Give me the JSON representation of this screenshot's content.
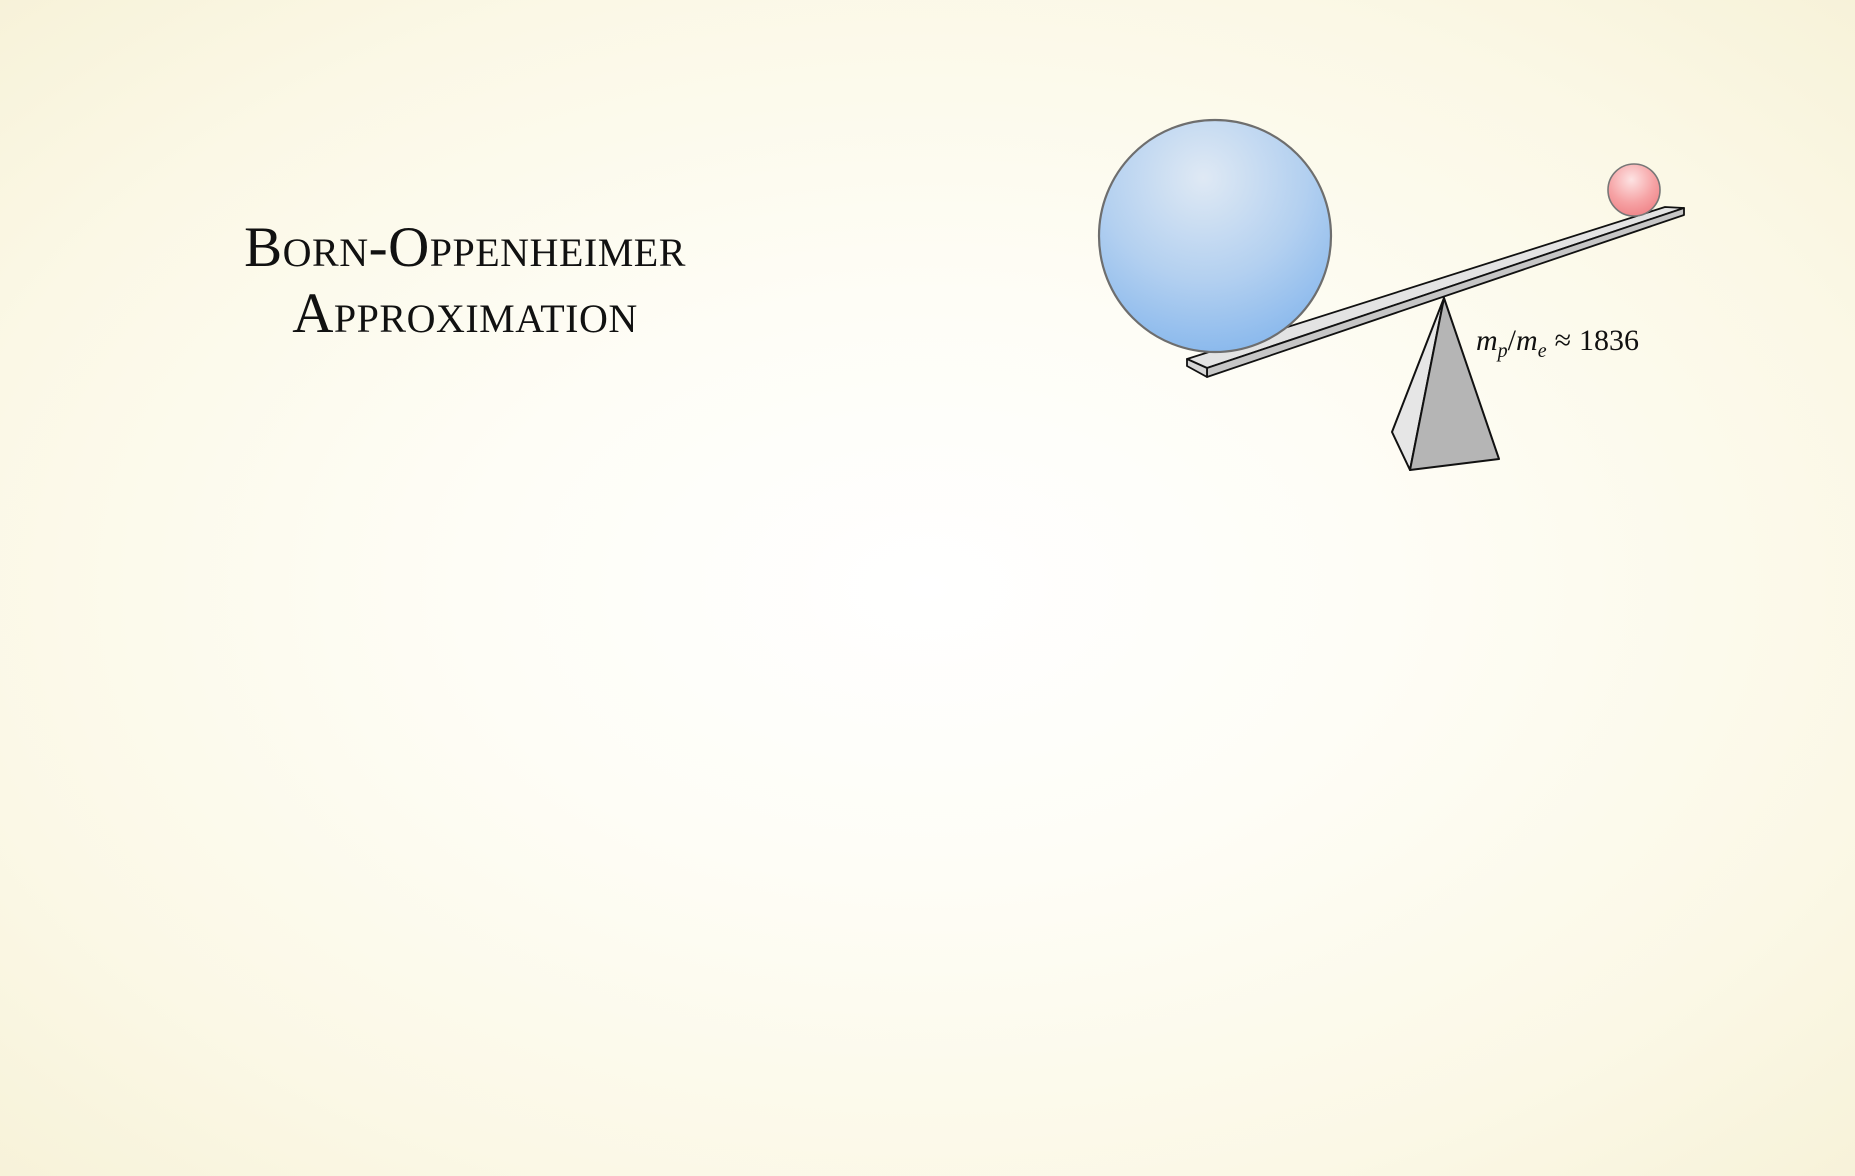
{
  "slide": {
    "title_line1": "Born-Oppenheimer",
    "title_line2": "Approximation"
  },
  "diagram": {
    "ratio_label": {
      "m": "m",
      "sub_p": "p",
      "slash": "/",
      "sub_e": "e",
      "approx": "≈",
      "value": "1836"
    },
    "colors": {
      "nucleus": "#8fbdee",
      "electron": "#f07f82",
      "plank": "#dcdcdc",
      "fulcrum": "#b5b5b5"
    }
  }
}
